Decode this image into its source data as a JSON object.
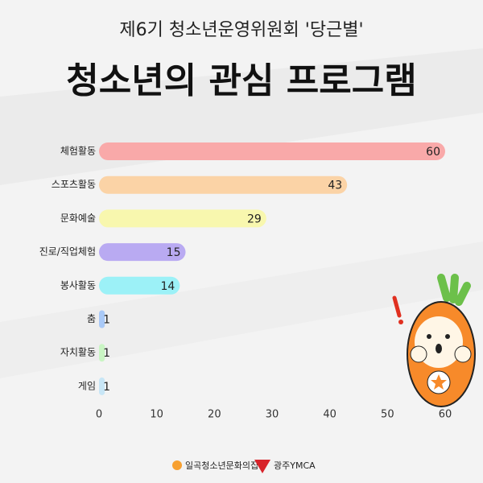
{
  "chart_data": {
    "type": "barh",
    "subtitle": "제6기 청소년운영위원회 '당근별'",
    "title": "청소년의 관심 프로그램",
    "categories": [
      "체험활동",
      "스포츠활동",
      "문화예술",
      "진로/직업체험",
      "봉사활동",
      "춤",
      "자치활동",
      "게임"
    ],
    "values": [
      60,
      43,
      29,
      15,
      14,
      1,
      1,
      1
    ],
    "colors": [
      "#f9a9a9",
      "#fbd3a6",
      "#f8f7ae",
      "#b9aaf2",
      "#9cf1f7",
      "#a9c9f7",
      "#c9f5c3",
      "#c8e6f6"
    ],
    "xlim": [
      0,
      60
    ],
    "xticks": [
      0,
      10,
      20,
      30,
      40,
      50,
      60
    ]
  },
  "footer": {
    "left": "일곡청소년문화의집",
    "right": "광주YMCA"
  }
}
